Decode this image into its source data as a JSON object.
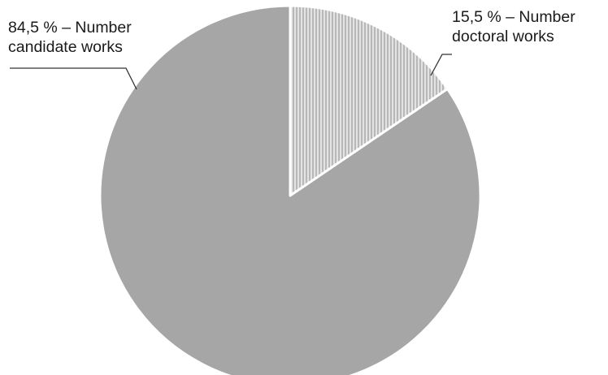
{
  "chart_data": {
    "type": "pie",
    "slices": [
      {
        "label_lines": [
          "15,5 % – Number",
          "doctoral works"
        ],
        "value": 15.5,
        "fill": "#d9d9d9",
        "pattern": "vertical-lines"
      },
      {
        "label_lines": [
          "84,5 % – Number",
          "candidate works"
        ],
        "value": 84.5,
        "fill": "#a6a6a6",
        "pattern": "none"
      }
    ],
    "start_angle": "12 o'clock",
    "direction": "clockwise",
    "legend": "none",
    "edge_color": "#ffffff"
  }
}
